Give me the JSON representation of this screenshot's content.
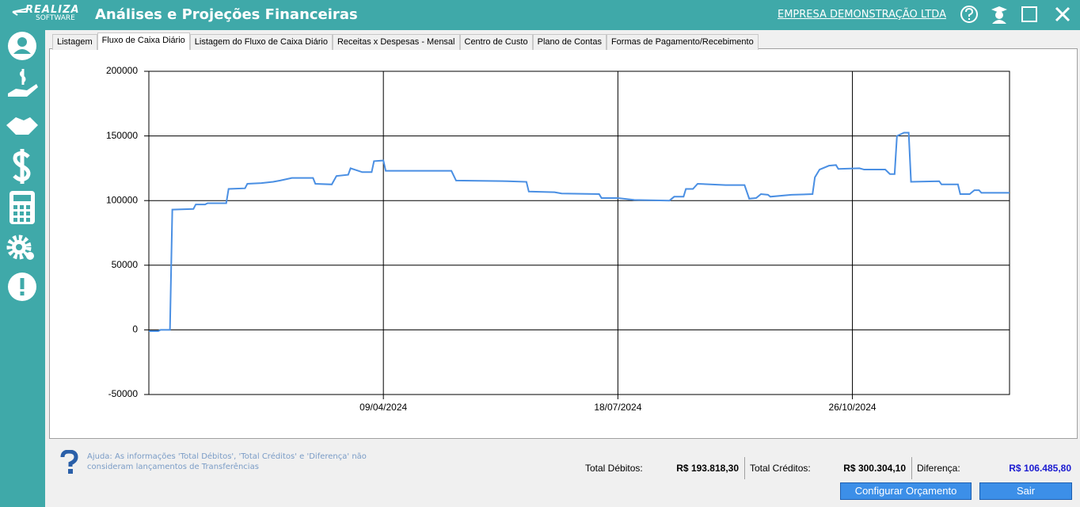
{
  "header": {
    "logo_top": "REALIZA",
    "logo_bottom": "SOFTWARE",
    "title": "Análises e Projeções Financeiras",
    "company": "EMPRESA DEMONSTRAÇÃO LTDA"
  },
  "tabs": [
    "Listagem",
    "Fluxo de Caixa Diário",
    "Listagem do Fluxo de Caixa Diário",
    "Receitas x Despesas - Mensal",
    "Centro de Custo",
    "Plano de Contas",
    "Formas de Pagamento/Recebimento"
  ],
  "active_tab": 1,
  "chart_data": {
    "type": "line",
    "x": [
      "2023-12-31",
      "2024-01-04",
      "2024-01-05",
      "2024-01-09",
      "2024-01-10",
      "2024-01-19",
      "2024-01-20",
      "2024-01-24",
      "2024-01-25",
      "2024-02-02",
      "2024-02-03",
      "2024-02-10",
      "2024-02-11",
      "2024-02-17",
      "2024-02-22",
      "2024-02-25",
      "2024-03-01",
      "2024-03-10",
      "2024-03-11",
      "2024-03-18",
      "2024-03-20",
      "2024-03-25",
      "2024-03-26",
      "2024-03-31",
      "2024-04-04",
      "2024-04-05",
      "2024-04-09",
      "2024-04-10",
      "2024-04-25",
      "2024-05-08",
      "2024-05-10",
      "2024-06-01",
      "2024-06-09",
      "2024-06-10",
      "2024-06-21",
      "2024-06-24",
      "2024-07-10",
      "2024-07-11",
      "2024-07-18",
      "2024-07-25",
      "2024-08-09",
      "2024-08-11",
      "2024-08-15",
      "2024-08-16",
      "2024-08-19",
      "2024-08-21",
      "2024-09-02",
      "2024-09-10",
      "2024-09-12",
      "2024-09-15",
      "2024-09-17",
      "2024-09-20",
      "2024-09-21",
      "2024-09-30",
      "2024-10-09",
      "2024-10-10",
      "2024-10-12",
      "2024-10-16",
      "2024-10-19",
      "2024-10-20",
      "2024-10-29",
      "2024-10-31",
      "2024-11-09",
      "2024-11-11",
      "2024-11-13",
      "2024-11-14",
      "2024-11-17",
      "2024-11-19",
      "2024-11-20",
      "2024-12-02",
      "2024-12-03",
      "2024-12-10",
      "2024-12-11",
      "2024-12-15",
      "2024-12-17",
      "2024-12-19",
      "2024-12-20",
      "2025-01-01"
    ],
    "series": [
      {
        "color": "#4a8fe3",
        "values": [
          -1000,
          -1000,
          0,
          0,
          93000,
          93500,
          97000,
          97000,
          98000,
          98000,
          109000,
          109500,
          113000,
          113500,
          114500,
          115500,
          117500,
          117500,
          113000,
          112500,
          119000,
          120000,
          125000,
          122000,
          122000,
          130500,
          131000,
          123000,
          123000,
          123000,
          115500,
          115000,
          114500,
          107000,
          106500,
          105500,
          105000,
          102000,
          102000,
          100500,
          100000,
          103000,
          103000,
          109000,
          109000,
          113000,
          112000,
          112000,
          101500,
          102000,
          105000,
          104500,
          103000,
          104500,
          105000,
          118000,
          124000,
          127000,
          127500,
          124500,
          125000,
          124000,
          124000,
          120500,
          120500,
          150000,
          152500,
          152500,
          114500,
          115000,
          112500,
          112500,
          105000,
          105000,
          108000,
          108000,
          106000,
          106000
        ]
      }
    ],
    "xlim": [
      "2023-12-31",
      "2025-01-01"
    ],
    "xticks": [
      {
        "value": "2024-04-09",
        "label": "09/04/2024"
      },
      {
        "value": "2024-07-18",
        "label": "18/07/2024"
      },
      {
        "value": "2024-10-26",
        "label": "26/10/2024"
      }
    ],
    "ylim": [
      -50000,
      200000
    ],
    "yticks": [
      -50000,
      0,
      50000,
      100000,
      150000,
      200000
    ],
    "grid": true
  },
  "footer": {
    "help": "Ajuda: As informações 'Total Débitos', 'Total Créditos' e 'Diferença' não consideram lançamentos de Transferências",
    "debits_label": "Total Débitos:",
    "debits_value": "R$ 193.818,30",
    "credits_label": "Total Créditos:",
    "credits_value": "R$ 300.304,10",
    "diff_label": "Diferença:",
    "diff_value": "R$ 106.485,80",
    "button_budget": "Configurar Orçamento",
    "button_exit": "Sair"
  }
}
